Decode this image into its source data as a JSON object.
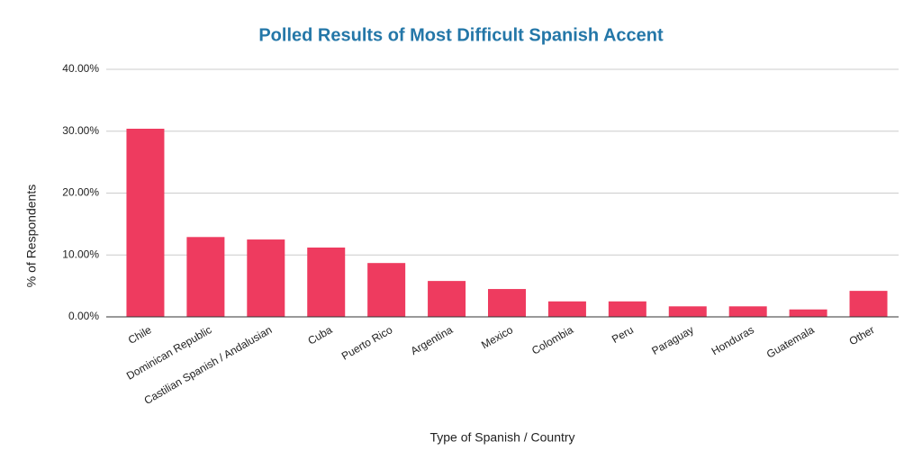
{
  "chart_data": {
    "type": "bar",
    "title": "Polled Results of Most Difficult Spanish Accent",
    "x_label": "Type of Spanish / Country",
    "y_label": "% of Respondents",
    "categories": [
      "Chile",
      "Dominican Republic",
      "Castilian Spanish / Andalusian",
      "Cuba",
      "Puerto Rico",
      "Argentina",
      "Mexico",
      "Colombia",
      "Peru",
      "Paraguay",
      "Honduras",
      "Guatemala",
      "Other"
    ],
    "values": [
      30.4,
      12.9,
      12.5,
      11.2,
      8.7,
      5.8,
      4.5,
      2.5,
      2.5,
      1.7,
      1.7,
      1.2,
      4.2
    ],
    "color": "#ee3b5f",
    "ylim": [
      0,
      40
    ],
    "yticks": [
      {
        "value": 0,
        "label": "0.00%"
      },
      {
        "value": 10,
        "label": "10.00%"
      },
      {
        "value": 20,
        "label": "20.00%"
      },
      {
        "value": 30,
        "label": "30.00%"
      },
      {
        "value": 40,
        "label": "40.00%"
      }
    ],
    "grid": true
  }
}
